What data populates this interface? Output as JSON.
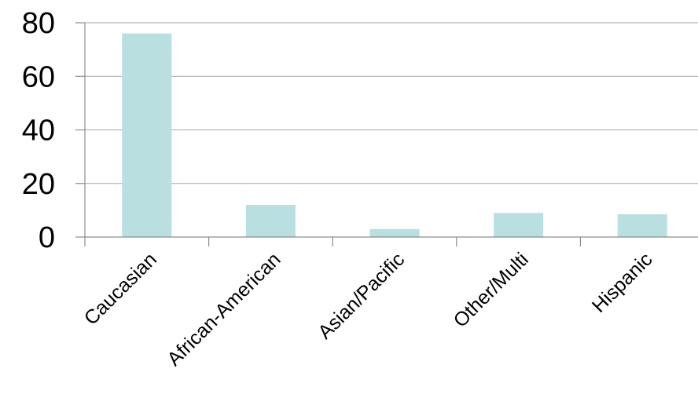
{
  "chart_data": {
    "type": "bar",
    "title": "",
    "xlabel": "",
    "ylabel": "",
    "categories": [
      "Caucasian",
      "African-American",
      "Asian/Pacific",
      "Other/Multi",
      "Hispanic"
    ],
    "values": [
      76,
      12,
      3,
      9,
      8.5
    ],
    "ylim": [
      0,
      80
    ],
    "yticks": [
      0,
      20,
      40,
      60,
      80
    ],
    "grid": true,
    "legend": "none",
    "bar_color": "#b9dfe1"
  }
}
